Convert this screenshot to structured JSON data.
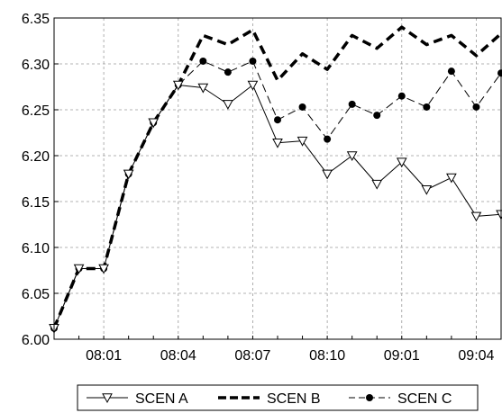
{
  "chart_data": {
    "type": "line",
    "title": "",
    "xlabel": "",
    "ylabel": "",
    "ylim": [
      6.0,
      6.35
    ],
    "yticks": [
      "6.00",
      "6.05",
      "6.10",
      "6.15",
      "6.20",
      "6.25",
      "6.30",
      "6.35"
    ],
    "x_tick_labels": [
      {
        "index": 2,
        "label": "08:01"
      },
      {
        "index": 5,
        "label": "08:04"
      },
      {
        "index": 8,
        "label": "08:07"
      },
      {
        "index": 11,
        "label": "08:10"
      },
      {
        "index": 14,
        "label": "09:01"
      },
      {
        "index": 17,
        "label": "09:04"
      }
    ],
    "grid": true,
    "legend_position": "bottom",
    "n_points": 19,
    "series": [
      {
        "name": "SCEN A",
        "style": "solid-thin",
        "marker": "triangle-down",
        "color": "#000000",
        "values": [
          6.012,
          6.077,
          6.077,
          6.18,
          6.236,
          6.277,
          6.274,
          6.256,
          6.277,
          6.214,
          6.216,
          6.18,
          6.2,
          6.169,
          6.193,
          6.163,
          6.176,
          6.134,
          6.136
        ]
      },
      {
        "name": "SCEN B",
        "style": "dashed-thick",
        "marker": "none",
        "color": "#000000",
        "values": [
          6.012,
          6.077,
          6.077,
          6.18,
          6.236,
          6.277,
          6.331,
          6.321,
          6.337,
          6.282,
          6.311,
          6.294,
          6.331,
          6.317,
          6.34,
          6.321,
          6.331,
          6.309,
          6.333
        ]
      },
      {
        "name": "SCEN C",
        "style": "dashed-thin",
        "marker": "dot",
        "color": "#000000",
        "values": [
          6.012,
          6.077,
          6.077,
          6.18,
          6.236,
          6.277,
          6.303,
          6.291,
          6.303,
          6.239,
          6.253,
          6.218,
          6.256,
          6.244,
          6.265,
          6.253,
          6.292,
          6.253,
          6.29
        ]
      }
    ]
  }
}
